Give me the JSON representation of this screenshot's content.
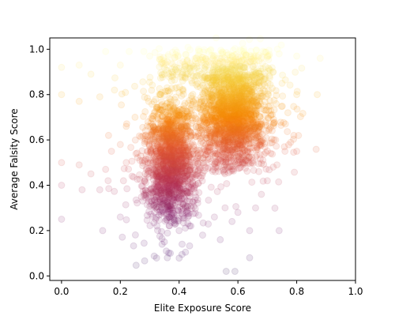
{
  "chart_data": {
    "type": "scatter",
    "title": "",
    "xlabel": "Elite Exposure Score",
    "ylabel": "Average Falsity Score",
    "xlim": [
      -0.04,
      1.0
    ],
    "ylim": [
      -0.02,
      1.05
    ],
    "xticks": [
      0.0,
      0.2,
      0.4,
      0.6,
      0.8,
      1.0
    ],
    "xtick_labels": [
      "0.0",
      "0.2",
      "0.4",
      "0.6",
      "0.8",
      "1.0"
    ],
    "yticks": [
      0.0,
      0.2,
      0.4,
      0.6,
      0.8,
      1.0
    ],
    "ytick_labels": [
      "0.0",
      "0.2",
      "0.4",
      "0.6",
      "0.8",
      "1.0"
    ],
    "grid": false,
    "legend": "none",
    "colormap": "inferno",
    "color_by": "y",
    "marker_alpha": 0.12,
    "clusters": [
      {
        "x_center": 0.37,
        "y_center": 0.5,
        "x_spread": 0.04,
        "y_spread": 0.14,
        "y_range": [
          0.22,
          0.83
        ]
      },
      {
        "x_center": 0.58,
        "y_center": 0.72,
        "x_spread": 0.055,
        "y_spread": 0.12,
        "y_range": [
          0.45,
          0.98
        ]
      }
    ],
    "points": [
      {
        "x": 0.0,
        "y": 0.92
      },
      {
        "x": 0.06,
        "y": 0.93
      },
      {
        "x": 0.1,
        "y": 0.89
      },
      {
        "x": 0.0,
        "y": 0.8
      },
      {
        "x": 0.06,
        "y": 0.77
      },
      {
        "x": 0.13,
        "y": 0.79
      },
      {
        "x": 0.18,
        "y": 0.82
      },
      {
        "x": 0.0,
        "y": 0.5
      },
      {
        "x": 0.06,
        "y": 0.49
      },
      {
        "x": 0.1,
        "y": 0.45
      },
      {
        "x": 0.0,
        "y": 0.4
      },
      {
        "x": 0.07,
        "y": 0.38
      },
      {
        "x": 0.13,
        "y": 0.38
      },
      {
        "x": 0.0,
        "y": 0.25
      },
      {
        "x": 0.14,
        "y": 0.2
      },
      {
        "x": 0.2,
        "y": 0.26
      },
      {
        "x": 0.15,
        "y": 0.47
      },
      {
        "x": 0.17,
        "y": 0.55
      },
      {
        "x": 0.16,
        "y": 0.62
      },
      {
        "x": 0.2,
        "y": 0.58
      },
      {
        "x": 0.22,
        "y": 0.5
      },
      {
        "x": 0.24,
        "y": 0.44
      },
      {
        "x": 0.22,
        "y": 0.66
      },
      {
        "x": 0.25,
        "y": 0.7
      },
      {
        "x": 0.2,
        "y": 0.93
      },
      {
        "x": 0.23,
        "y": 0.99
      },
      {
        "x": 0.28,
        "y": 0.99
      },
      {
        "x": 0.3,
        "y": 0.97
      },
      {
        "x": 0.15,
        "y": 0.99
      },
      {
        "x": 0.36,
        "y": 0.08
      },
      {
        "x": 0.37,
        "y": 0.1
      },
      {
        "x": 0.35,
        "y": 0.15
      },
      {
        "x": 0.41,
        "y": 0.14
      },
      {
        "x": 0.4,
        "y": 0.2
      },
      {
        "x": 0.44,
        "y": 0.22
      },
      {
        "x": 0.32,
        "y": 0.25
      },
      {
        "x": 0.48,
        "y": 0.18
      },
      {
        "x": 0.54,
        "y": 0.16
      },
      {
        "x": 0.56,
        "y": 0.02
      },
      {
        "x": 0.59,
        "y": 0.02
      },
      {
        "x": 0.64,
        "y": 0.08
      },
      {
        "x": 0.64,
        "y": 0.2
      },
      {
        "x": 0.58,
        "y": 0.24
      },
      {
        "x": 0.52,
        "y": 0.26
      },
      {
        "x": 0.6,
        "y": 0.28
      },
      {
        "x": 0.66,
        "y": 0.3
      },
      {
        "x": 0.68,
        "y": 0.36
      },
      {
        "x": 0.74,
        "y": 0.2
      },
      {
        "x": 0.7,
        "y": 0.42
      },
      {
        "x": 0.72,
        "y": 0.48
      },
      {
        "x": 0.76,
        "y": 0.55
      },
      {
        "x": 0.8,
        "y": 0.55
      },
      {
        "x": 0.79,
        "y": 0.62
      },
      {
        "x": 0.77,
        "y": 0.72
      },
      {
        "x": 0.8,
        "y": 0.8
      },
      {
        "x": 0.87,
        "y": 0.8
      },
      {
        "x": 0.75,
        "y": 0.85
      },
      {
        "x": 0.72,
        "y": 0.9
      },
      {
        "x": 0.68,
        "y": 0.96
      },
      {
        "x": 0.74,
        "y": 0.98
      },
      {
        "x": 0.8,
        "y": 0.97
      },
      {
        "x": 0.88,
        "y": 0.96
      },
      {
        "x": 0.62,
        "y": 1.0
      },
      {
        "x": 0.5,
        "y": 0.99
      }
    ]
  }
}
